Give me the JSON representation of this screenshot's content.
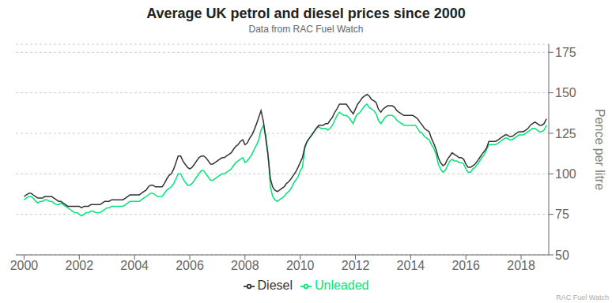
{
  "chart_data": {
    "type": "line",
    "title": "Average UK petrol and diesel prices since 2000",
    "subtitle": "Data from RAC Fuel Watch",
    "ylabel": "Pence per litre",
    "annotations": [
      "RAC Fuel Watch"
    ],
    "grid": true,
    "legend": "bottom",
    "xlim": [
      1999.7,
      2019.0
    ],
    "xticks": [
      2000,
      2002,
      2004,
      2006,
      2008,
      2010,
      2012,
      2014,
      2016,
      2018
    ],
    "ylim": [
      50,
      180
    ],
    "yticks": [
      50,
      75,
      100,
      125,
      150,
      175
    ],
    "x": [
      2000.0,
      2000.08,
      2000.17,
      2000.25,
      2000.33,
      2000.42,
      2000.5,
      2000.58,
      2000.67,
      2000.75,
      2000.83,
      2000.92,
      2001.0,
      2001.08,
      2001.17,
      2001.25,
      2001.33,
      2001.42,
      2001.5,
      2001.58,
      2001.67,
      2001.75,
      2001.83,
      2001.92,
      2002.0,
      2002.08,
      2002.17,
      2002.25,
      2002.33,
      2002.42,
      2002.5,
      2002.58,
      2002.67,
      2002.75,
      2002.83,
      2002.92,
      2003.0,
      2003.08,
      2003.17,
      2003.25,
      2003.33,
      2003.42,
      2003.5,
      2003.58,
      2003.67,
      2003.75,
      2003.83,
      2003.92,
      2004.0,
      2004.08,
      2004.17,
      2004.25,
      2004.33,
      2004.42,
      2004.5,
      2004.58,
      2004.67,
      2004.75,
      2004.83,
      2004.92,
      2005.0,
      2005.08,
      2005.17,
      2005.25,
      2005.33,
      2005.42,
      2005.5,
      2005.58,
      2005.67,
      2005.75,
      2005.83,
      2005.92,
      2006.0,
      2006.08,
      2006.17,
      2006.25,
      2006.33,
      2006.42,
      2006.5,
      2006.58,
      2006.67,
      2006.75,
      2006.83,
      2006.92,
      2007.0,
      2007.08,
      2007.17,
      2007.25,
      2007.33,
      2007.42,
      2007.5,
      2007.58,
      2007.67,
      2007.75,
      2007.83,
      2007.92,
      2008.0,
      2008.08,
      2008.17,
      2008.25,
      2008.33,
      2008.42,
      2008.5,
      2008.58,
      2008.67,
      2008.75,
      2008.83,
      2008.92,
      2009.0,
      2009.08,
      2009.17,
      2009.25,
      2009.33,
      2009.42,
      2009.5,
      2009.58,
      2009.67,
      2009.75,
      2009.83,
      2009.92,
      2010.0,
      2010.08,
      2010.17,
      2010.25,
      2010.33,
      2010.42,
      2010.5,
      2010.58,
      2010.67,
      2010.75,
      2010.83,
      2010.92,
      2011.0,
      2011.08,
      2011.17,
      2011.25,
      2011.33,
      2011.42,
      2011.5,
      2011.58,
      2011.67,
      2011.75,
      2011.83,
      2011.92,
      2012.0,
      2012.08,
      2012.17,
      2012.25,
      2012.33,
      2012.42,
      2012.5,
      2012.58,
      2012.67,
      2012.75,
      2012.83,
      2012.92,
      2013.0,
      2013.08,
      2013.17,
      2013.25,
      2013.33,
      2013.42,
      2013.5,
      2013.58,
      2013.67,
      2013.75,
      2013.83,
      2013.92,
      2014.0,
      2014.08,
      2014.17,
      2014.25,
      2014.33,
      2014.42,
      2014.5,
      2014.58,
      2014.67,
      2014.75,
      2014.83,
      2014.92,
      2015.0,
      2015.08,
      2015.17,
      2015.25,
      2015.33,
      2015.42,
      2015.5,
      2015.58,
      2015.67,
      2015.75,
      2015.83,
      2015.92,
      2016.0,
      2016.08,
      2016.17,
      2016.25,
      2016.33,
      2016.42,
      2016.5,
      2016.58,
      2016.67,
      2016.75,
      2016.83,
      2016.92,
      2017.0,
      2017.08,
      2017.17,
      2017.25,
      2017.33,
      2017.42,
      2017.5,
      2017.58,
      2017.67,
      2017.75,
      2017.83,
      2017.92,
      2018.0,
      2018.08,
      2018.17,
      2018.25,
      2018.33,
      2018.42,
      2018.5,
      2018.58,
      2018.67,
      2018.75,
      2018.83,
      2018.92
    ],
    "series": [
      {
        "name": "Unleaded",
        "color": "#00e676",
        "values": [
          84,
          85,
          86,
          86,
          85,
          83,
          82,
          83,
          83,
          84,
          84,
          83,
          83,
          82,
          81,
          81,
          82,
          81,
          80,
          79,
          78,
          77,
          76,
          76,
          75,
          74,
          75,
          76,
          76,
          77,
          77,
          76,
          76,
          76,
          77,
          78,
          79,
          79,
          80,
          80,
          80,
          80,
          80,
          80,
          81,
          82,
          83,
          83,
          83,
          83,
          83,
          84,
          85,
          86,
          87,
          88,
          88,
          87,
          86,
          86,
          86,
          88,
          90,
          91,
          92,
          94,
          97,
          100,
          100,
          97,
          95,
          93,
          93,
          94,
          96,
          98,
          100,
          102,
          102,
          100,
          98,
          96,
          96,
          97,
          98,
          99,
          100,
          100,
          101,
          102,
          103,
          105,
          107,
          108,
          109,
          110,
          107,
          108,
          110,
          112,
          115,
          118,
          121,
          127,
          130,
          124,
          113,
          92,
          86,
          84,
          83,
          84,
          85,
          86,
          88,
          89,
          91,
          94,
          96,
          98,
          102,
          104,
          116,
          120,
          122,
          124,
          126,
          128,
          129,
          128,
          128,
          128,
          127,
          128,
          130,
          133,
          136,
          138,
          137,
          136,
          136,
          135,
          133,
          131,
          135,
          137,
          138,
          140,
          142,
          143,
          141,
          140,
          139,
          137,
          133,
          131,
          133,
          135,
          136,
          136,
          136,
          135,
          133,
          132,
          131,
          130,
          130,
          130,
          130,
          130,
          130,
          128,
          126,
          125,
          123,
          122,
          121,
          118,
          116,
          112,
          106,
          103,
          101,
          102,
          105,
          108,
          109,
          108,
          108,
          107,
          107,
          106,
          103,
          101,
          101,
          103,
          104,
          106,
          108,
          110,
          112,
          115,
          118,
          118,
          118,
          118,
          119,
          120,
          121,
          122,
          122,
          121,
          121,
          122,
          123,
          124,
          124,
          124,
          125,
          126,
          127,
          128,
          128,
          127,
          126,
          126,
          127,
          130
        ]
      },
      {
        "name": "Diesel",
        "color": "#333333",
        "values": [
          86,
          87,
          88,
          88,
          87,
          86,
          85,
          85,
          85,
          86,
          86,
          86,
          86,
          85,
          84,
          83,
          83,
          82,
          81,
          80,
          80,
          80,
          80,
          80,
          80,
          79,
          80,
          80,
          80,
          81,
          81,
          81,
          81,
          81,
          82,
          83,
          83,
          83,
          84,
          84,
          84,
          84,
          84,
          84,
          85,
          86,
          87,
          87,
          87,
          87,
          87,
          88,
          89,
          90,
          92,
          93,
          93,
          92,
          92,
          92,
          92,
          94,
          97,
          99,
          100,
          103,
          107,
          111,
          111,
          108,
          106,
          104,
          103,
          104,
          106,
          108,
          110,
          111,
          111,
          110,
          108,
          106,
          106,
          107,
          108,
          109,
          110,
          110,
          111,
          112,
          113,
          115,
          117,
          118,
          120,
          121,
          118,
          119,
          122,
          124,
          127,
          131,
          135,
          139,
          132,
          122,
          112,
          97,
          92,
          90,
          89,
          90,
          91,
          92,
          94,
          95,
          97,
          99,
          101,
          104,
          107,
          110,
          117,
          120,
          122,
          124,
          126,
          128,
          130,
          130,
          130,
          131,
          131,
          133,
          135,
          138,
          140,
          143,
          143,
          143,
          143,
          141,
          139,
          137,
          140,
          143,
          145,
          147,
          148,
          149,
          148,
          146,
          145,
          144,
          140,
          138,
          140,
          141,
          142,
          142,
          142,
          141,
          139,
          138,
          137,
          136,
          136,
          136,
          136,
          136,
          135,
          134,
          132,
          130,
          128,
          127,
          126,
          122,
          119,
          115,
          110,
          107,
          105,
          106,
          109,
          111,
          113,
          112,
          111,
          110,
          110,
          109,
          106,
          104,
          104,
          105,
          106,
          108,
          110,
          112,
          114,
          116,
          120,
          120,
          120,
          120,
          121,
          122,
          123,
          124,
          124,
          123,
          123,
          124,
          125,
          126,
          126,
          126,
          127,
          128,
          130,
          131,
          132,
          131,
          130,
          130,
          131,
          134
        ]
      }
    ]
  }
}
